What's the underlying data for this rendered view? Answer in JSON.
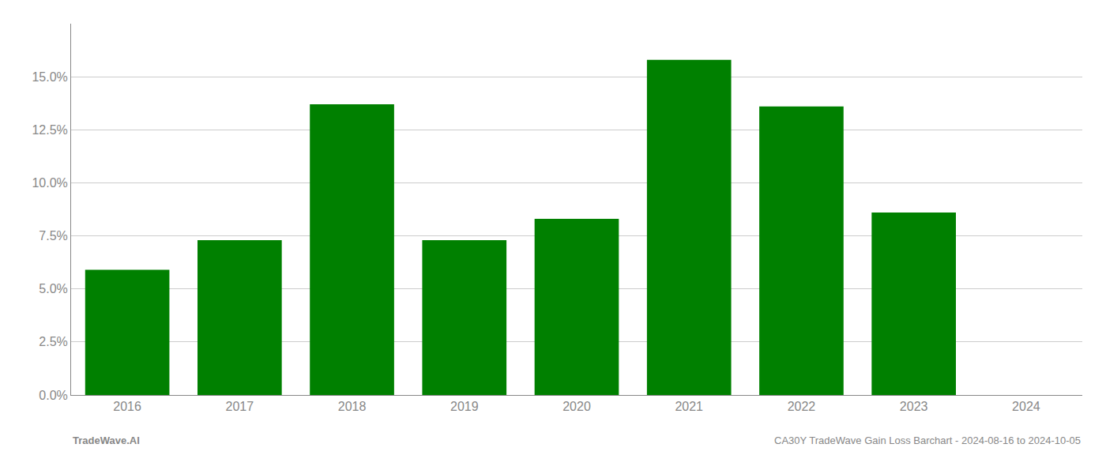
{
  "chart_data": {
    "type": "bar",
    "categories": [
      "2016",
      "2017",
      "2018",
      "2019",
      "2020",
      "2021",
      "2022",
      "2023",
      "2024"
    ],
    "values": [
      0.059,
      0.073,
      0.137,
      0.073,
      0.083,
      0.158,
      0.136,
      0.086,
      0.0
    ],
    "color": "#008000",
    "ylim": [
      0,
      0.175
    ],
    "yticks": [
      {
        "value": 0.0,
        "label": "0.0%"
      },
      {
        "value": 0.025,
        "label": "2.5%"
      },
      {
        "value": 0.05,
        "label": "5.0%"
      },
      {
        "value": 0.075,
        "label": "7.5%"
      },
      {
        "value": 0.1,
        "label": "10.0%"
      },
      {
        "value": 0.125,
        "label": "12.5%"
      },
      {
        "value": 0.15,
        "label": "15.0%"
      }
    ],
    "grid": true,
    "annotations": [
      "TradeWave.AI",
      "CA30Y TradeWave Gain Loss Barchart - 2024-08-16 to 2024-10-05"
    ]
  }
}
